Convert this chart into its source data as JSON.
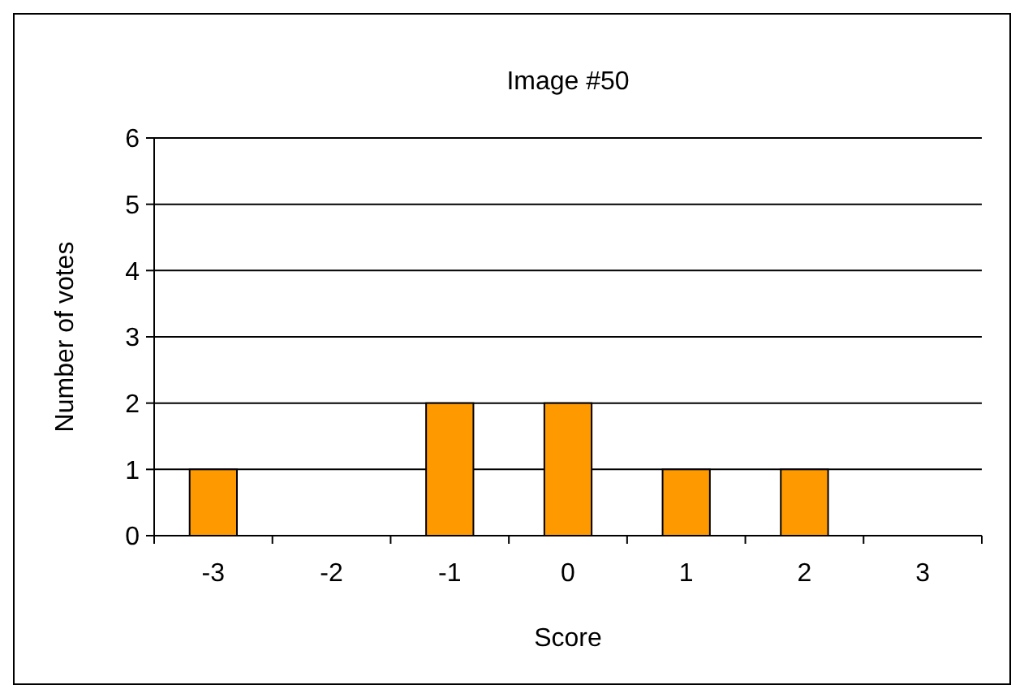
{
  "chart_data": {
    "type": "bar",
    "title": "Image #50",
    "xlabel": "Score",
    "ylabel": "Number of votes",
    "categories": [
      "-3",
      "-2",
      "-1",
      "0",
      "1",
      "2",
      "3"
    ],
    "values": [
      1,
      0,
      2,
      2,
      1,
      1,
      0
    ],
    "color": "#ff9900",
    "ylim": [
      0,
      6
    ],
    "yticks": [
      0,
      1,
      2,
      3,
      4,
      5,
      6
    ],
    "grid": "y"
  }
}
